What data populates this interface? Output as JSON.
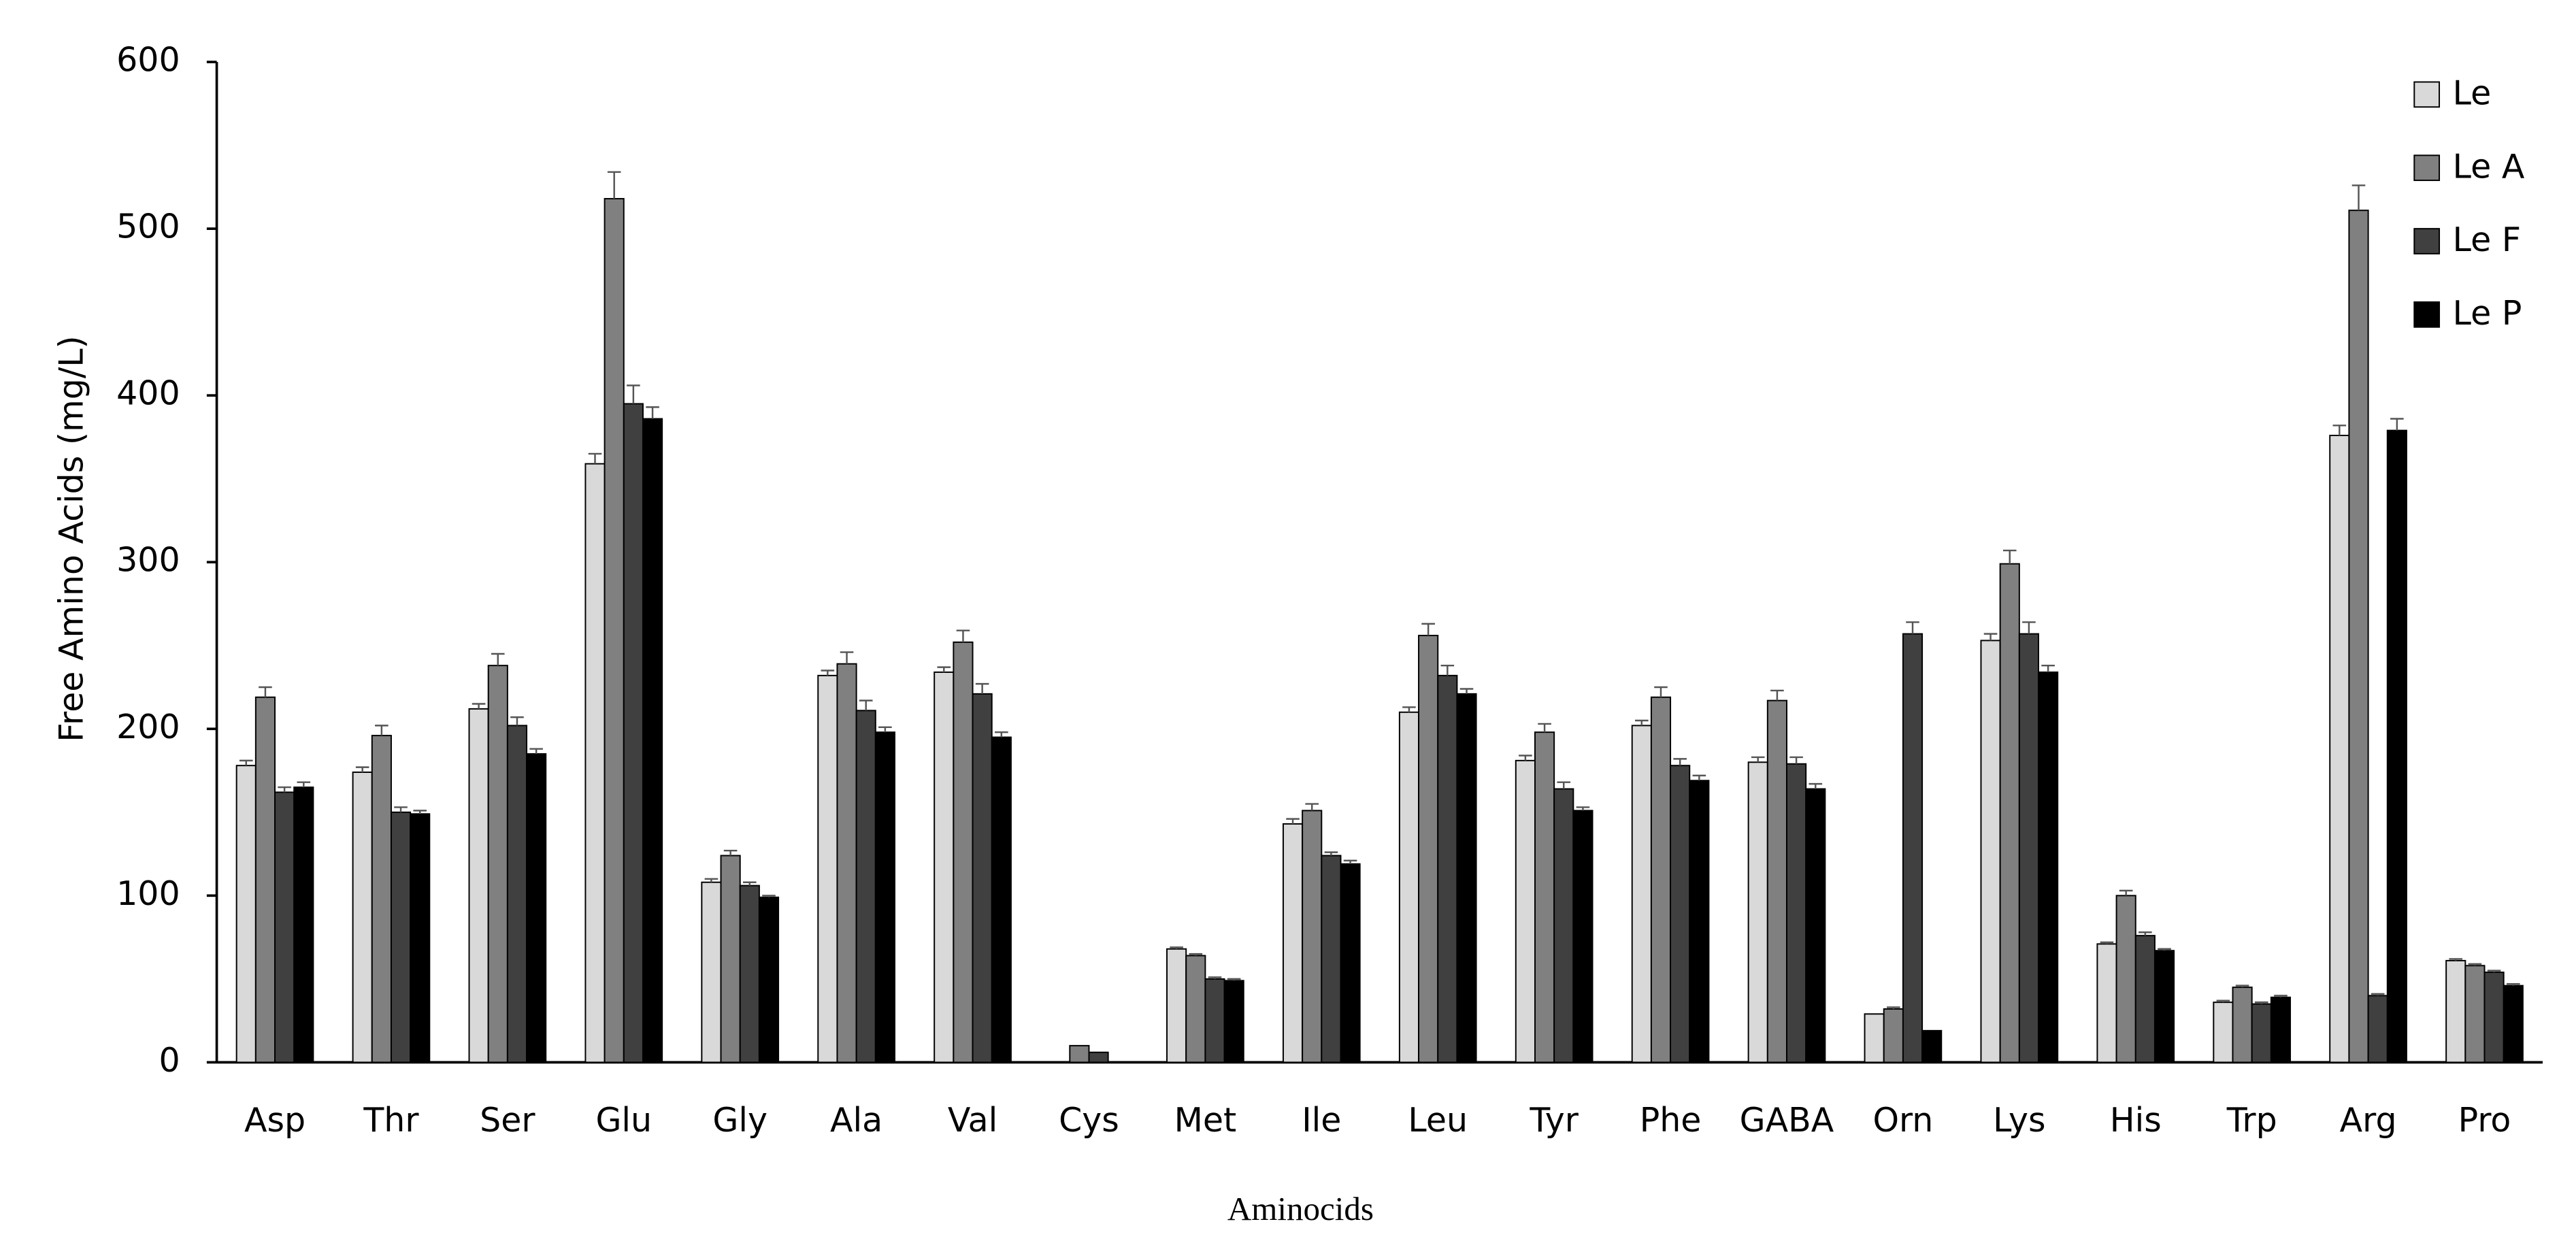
{
  "chart_data": {
    "type": "bar",
    "x_label": "Aminocids",
    "y_label": "Free Amino Acids (mg/L)",
    "categories": [
      "Asp",
      "Thr",
      "Ser",
      "Glu",
      "Gly",
      "Ala",
      "Val",
      "Cys",
      "Met",
      "Ile",
      "Leu",
      "Tyr",
      "Phe",
      "GABA",
      "Orn",
      "Lys",
      "His",
      "Trp",
      "Arg",
      "Pro"
    ],
    "series": [
      {
        "name": "Le",
        "color": "#d9d9d9",
        "values": [
          178,
          174,
          212,
          359,
          108,
          232,
          234,
          0,
          68,
          143,
          210,
          181,
          202,
          180,
          29,
          253,
          71,
          36,
          376,
          61
        ],
        "errors": [
          3,
          3,
          3,
          6,
          2,
          3,
          3,
          0,
          1,
          3,
          3,
          3,
          3,
          3,
          0,
          4,
          1,
          1,
          6,
          1
        ]
      },
      {
        "name": "Le A",
        "color": "#808080",
        "values": [
          219,
          196,
          238,
          518,
          124,
          239,
          252,
          10,
          64,
          151,
          256,
          198,
          219,
          217,
          32,
          299,
          100,
          45,
          511,
          58
        ],
        "errors": [
          6,
          6,
          7,
          16,
          3,
          7,
          7,
          0,
          1,
          4,
          7,
          5,
          6,
          6,
          1,
          8,
          3,
          1,
          15,
          1
        ]
      },
      {
        "name": "Le F",
        "color": "#404040",
        "values": [
          162,
          150,
          202,
          395,
          106,
          211,
          221,
          6,
          50,
          124,
          232,
          164,
          178,
          179,
          257,
          257,
          76,
          35,
          40,
          54
        ],
        "errors": [
          3,
          3,
          5,
          11,
          2,
          6,
          6,
          0,
          1,
          2,
          6,
          4,
          4,
          4,
          7,
          7,
          2,
          1,
          1,
          1
        ]
      },
      {
        "name": "Le P",
        "color": "#000000",
        "values": [
          165,
          149,
          185,
          386,
          99,
          198,
          195,
          0,
          49,
          119,
          221,
          151,
          169,
          164,
          19,
          234,
          67,
          39,
          379,
          46
        ],
        "errors": [
          3,
          2,
          3,
          7,
          1,
          3,
          3,
          0,
          1,
          2,
          3,
          2,
          3,
          3,
          0,
          4,
          1,
          1,
          7,
          1
        ]
      }
    ],
    "ylim": [
      0,
      600
    ],
    "yticks": [
      0,
      100,
      200,
      300,
      400,
      500,
      600
    ],
    "grid": false,
    "legend": "top-right"
  }
}
